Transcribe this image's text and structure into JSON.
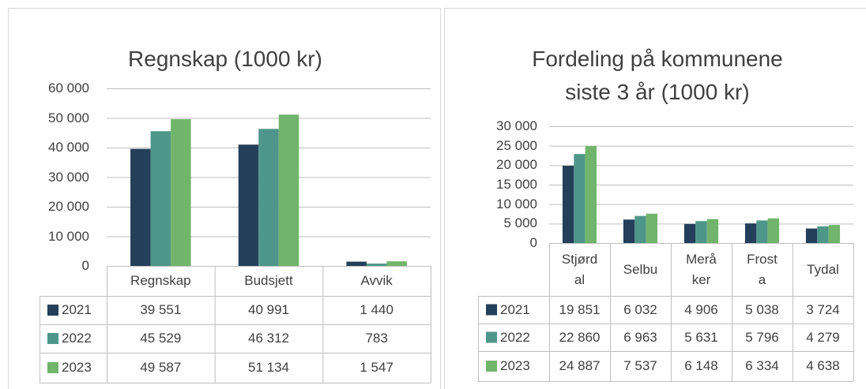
{
  "chart_data": [
    {
      "type": "bar",
      "title": "Regnskap (1000 kr)",
      "categories": [
        "Regnskap",
        "Budsjett",
        "Avvik"
      ],
      "series": [
        {
          "name": "2021",
          "color": "#243f5a",
          "values": [
            39551,
            40991,
            1440
          ],
          "value_labels": [
            "39 551",
            "40 991",
            "1 440"
          ]
        },
        {
          "name": "2022",
          "color": "#4f968a",
          "values": [
            45529,
            46312,
            783
          ],
          "value_labels": [
            "45 529",
            "46 312",
            "783"
          ]
        },
        {
          "name": "2023",
          "color": "#70b56b",
          "values": [
            49587,
            51134,
            1547
          ],
          "value_labels": [
            "49 587",
            "51 134",
            "1 547"
          ]
        }
      ],
      "ylim": [
        0,
        60000
      ],
      "yticks": [
        0,
        {
          "value": 10000,
          "label": "10 000"
        },
        {
          "value": 20000,
          "label": "20 000"
        },
        {
          "value": 30000,
          "label": "30 000"
        },
        {
          "value": 40000,
          "label": "40 000"
        },
        {
          "value": 50000,
          "label": "50 000"
        },
        {
          "value": 60000,
          "label": "60 000"
        }
      ],
      "grid": true
    },
    {
      "type": "bar",
      "title": "Fordeling på kommunene siste 3 år (1000 kr)",
      "categories": [
        "Stjørdal",
        "Selbu",
        "Meråker",
        "Frosta",
        "Tydal"
      ],
      "series": [
        {
          "name": "2021",
          "color": "#243f5a",
          "values": [
            19851,
            6032,
            4906,
            5038,
            3724
          ],
          "value_labels": [
            "19 851",
            "6 032",
            "4 906",
            "5 038",
            "3 724"
          ]
        },
        {
          "name": "2022",
          "color": "#4f968a",
          "values": [
            22860,
            6963,
            5631,
            5796,
            4279
          ],
          "value_labels": [
            "22 860",
            "6 963",
            "5 631",
            "5 796",
            "4 279"
          ]
        },
        {
          "name": "2023",
          "color": "#70b56b",
          "values": [
            24887,
            7537,
            6148,
            6334,
            4638
          ],
          "value_labels": [
            "24 887",
            "7 537",
            "6 148",
            "6 334",
            "4 638"
          ]
        }
      ],
      "ylim": [
        0,
        30000
      ],
      "yticks": [
        0,
        {
          "value": 5000,
          "label": "5 000"
        },
        {
          "value": 10000,
          "label": "10 000"
        },
        {
          "value": 15000,
          "label": "15 000"
        },
        {
          "value": 20000,
          "label": "20 000"
        },
        {
          "value": 25000,
          "label": "25 000"
        },
        {
          "value": 30000,
          "label": "30 000"
        }
      ],
      "grid": true
    }
  ]
}
